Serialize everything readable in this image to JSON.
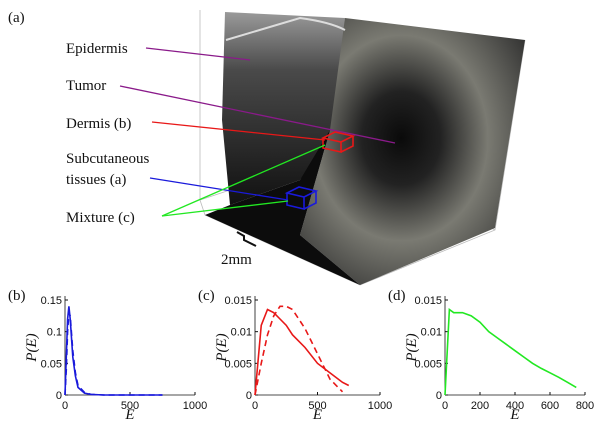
{
  "figure_a": {
    "panel_label": "(a)",
    "annotations": [
      "Epidermis",
      "Tumor",
      "Dermis (b)",
      "Subcutaneous",
      "tissues (a)",
      "Mixture (c)"
    ],
    "scale_bar": "2mm"
  },
  "chart_data": [
    {
      "type": "line",
      "label": "(b)",
      "xlabel": "E",
      "ylabel": "P(E)",
      "x": [
        0,
        10,
        20,
        30,
        40,
        60,
        80,
        100,
        150,
        200,
        300,
        400,
        500,
        600,
        750
      ],
      "series": [
        {
          "color": "#1a1adb",
          "dash": false,
          "values": [
            0,
            0.06,
            0.12,
            0.14,
            0.12,
            0.06,
            0.03,
            0.012,
            0.003,
            0.001,
            0,
            0,
            0,
            0,
            0
          ]
        },
        {
          "color": "#1a1adb",
          "dash": true,
          "values": [
            0,
            0.04,
            0.1,
            0.13,
            0.125,
            0.07,
            0.035,
            0.015,
            0.004,
            0.001,
            0,
            0,
            0,
            0,
            0
          ]
        }
      ],
      "xlim": [
        0,
        1000
      ],
      "xticks": [
        0,
        500,
        1000
      ],
      "ylim": [
        0,
        0.15
      ],
      "yticks": [
        0,
        0.05,
        0.1,
        0.15
      ]
    },
    {
      "type": "line",
      "label": "(c)",
      "xlabel": "E",
      "ylabel": "P(E)",
      "x": [
        0,
        50,
        100,
        150,
        200,
        250,
        300,
        400,
        500,
        600,
        700,
        750
      ],
      "series": [
        {
          "color": "#e81818",
          "dash": false,
          "values": [
            0,
            0.011,
            0.0135,
            0.013,
            0.012,
            0.011,
            0.0095,
            0.0075,
            0.005,
            0.0035,
            0.002,
            0.0015
          ]
        },
        {
          "color": "#e81818",
          "dash": true,
          "values": [
            0,
            0.005,
            0.0095,
            0.0125,
            0.014,
            0.014,
            0.0135,
            0.0105,
            0.0065,
            0.0025,
            0.0005,
            null
          ]
        }
      ],
      "xlim": [
        0,
        1000
      ],
      "xticks": [
        0,
        500,
        1000
      ],
      "ylim": [
        0,
        0.015
      ],
      "yticks": [
        0,
        0.005,
        0.01,
        0.015
      ]
    },
    {
      "type": "line",
      "label": "(d)",
      "xlabel": "E",
      "ylabel": "P(E)",
      "x": [
        0,
        25,
        50,
        100,
        150,
        200,
        250,
        300,
        350,
        400,
        450,
        500,
        550,
        600,
        650,
        700,
        750
      ],
      "series": [
        {
          "color": "#22e822",
          "dash": false,
          "values": [
            0,
            0.0135,
            0.013,
            0.013,
            0.0125,
            0.0115,
            0.01,
            0.009,
            0.008,
            0.007,
            0.006,
            0.005,
            0.0042,
            0.0035,
            0.0028,
            0.002,
            0.0012
          ]
        }
      ],
      "xlim": [
        0,
        800
      ],
      "xticks": [
        0,
        200,
        400,
        600,
        800
      ],
      "ylim": [
        0,
        0.015
      ],
      "yticks": [
        0,
        0.005,
        0.01,
        0.015
      ]
    }
  ]
}
